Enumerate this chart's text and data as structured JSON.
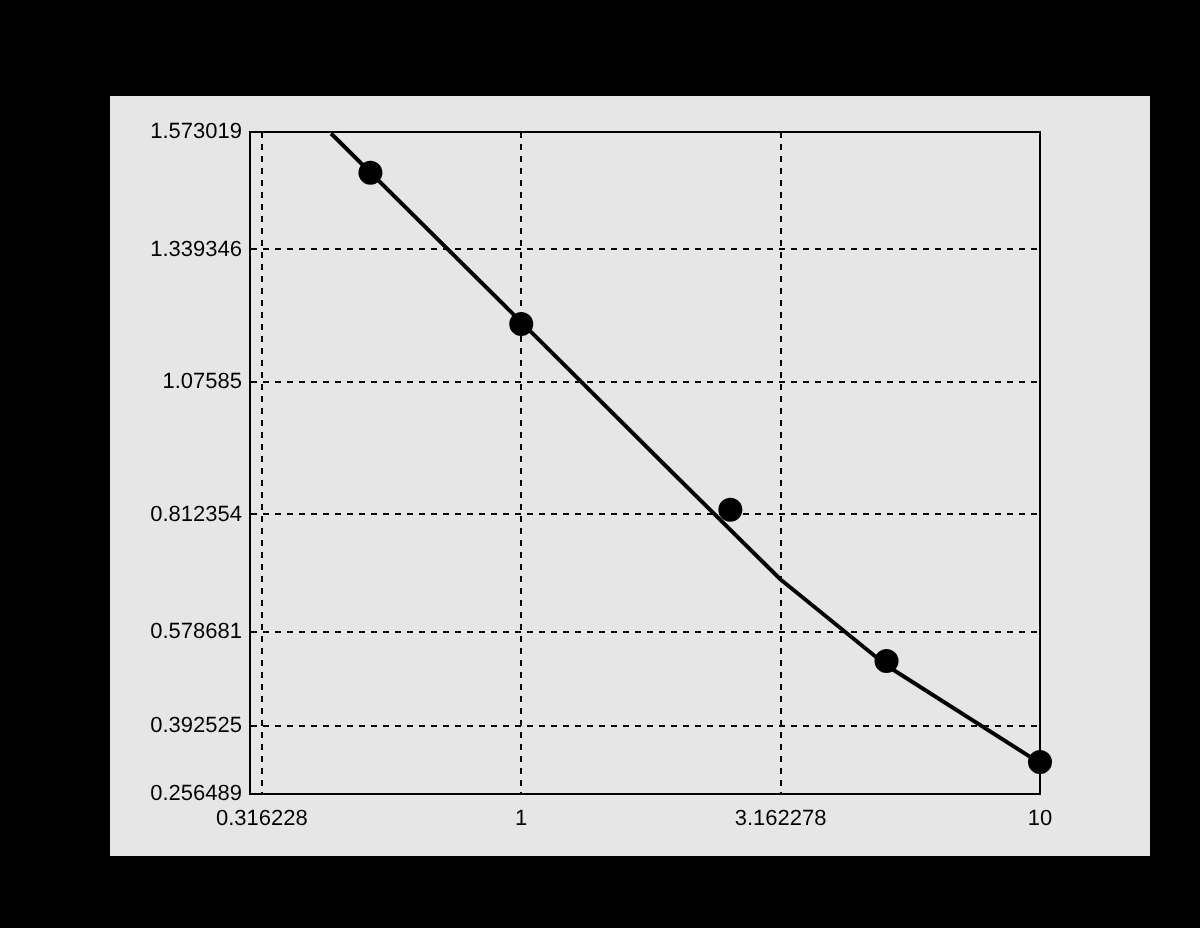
{
  "chart_data": {
    "type": "scatter",
    "log": "x",
    "grid": true,
    "legend": false,
    "xlim": [
      0.316228,
      10
    ],
    "xticks": [
      0.316228,
      1,
      3.162278,
      10
    ],
    "ylim": [
      0.256489,
      1.573019
    ],
    "yticks": [
      0.256489,
      0.392525,
      0.578681,
      0.812354,
      1.07585,
      1.339346,
      1.573019
    ],
    "series": [
      {
        "color": "#000000",
        "marker": "circle",
        "x": [
          0.512,
          1,
          2.53,
          5.06,
          10
        ],
        "values": [
          1.492,
          1.191,
          0.822,
          0.521,
          0.32
        ]
      },
      {
        "type": "line",
        "color": "#000000",
        "marker": "none",
        "line_style": "solid",
        "x": [
          0.43,
          1,
          2,
          3.162,
          5.06,
          10
        ],
        "values": [
          1.57,
          1.195,
          0.886,
          0.683,
          0.512,
          0.318
        ]
      }
    ]
  }
}
